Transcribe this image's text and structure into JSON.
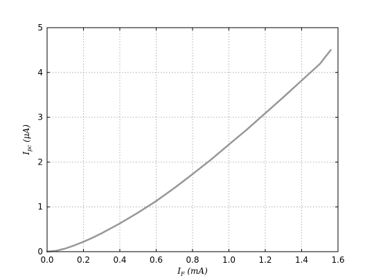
{
  "chart_data": {
    "type": "line",
    "title": "",
    "xlabel": {
      "main": "I",
      "sub": "F",
      "unit": " (mA)"
    },
    "ylabel": {
      "main": "I",
      "sub": "pc",
      "unit": " (μA)"
    },
    "xlim": [
      0.0,
      1.6
    ],
    "ylim": [
      0,
      5
    ],
    "xticks": [
      "0.0",
      "0.2",
      "0.4",
      "0.6",
      "0.8",
      "1.0",
      "1.2",
      "1.4",
      "1.6"
    ],
    "yticks": [
      "0",
      "1",
      "2",
      "3",
      "4",
      "5"
    ],
    "grid": true,
    "grid_style": "dotted",
    "line_color": "#8c8c8c",
    "series": [
      {
        "x": [
          0.0,
          0.05,
          0.1,
          0.15,
          0.2,
          0.25,
          0.3,
          0.35,
          0.4,
          0.45,
          0.5,
          0.55,
          0.6,
          0.7,
          0.8,
          0.9,
          1.0,
          1.1,
          1.2,
          1.3,
          1.4,
          1.5,
          1.56
        ],
        "y": [
          0.0,
          0.02,
          0.07,
          0.14,
          0.22,
          0.31,
          0.41,
          0.52,
          0.63,
          0.75,
          0.87,
          1.0,
          1.13,
          1.42,
          1.73,
          2.05,
          2.39,
          2.73,
          3.09,
          3.45,
          3.82,
          4.19,
          4.5
        ]
      }
    ]
  }
}
